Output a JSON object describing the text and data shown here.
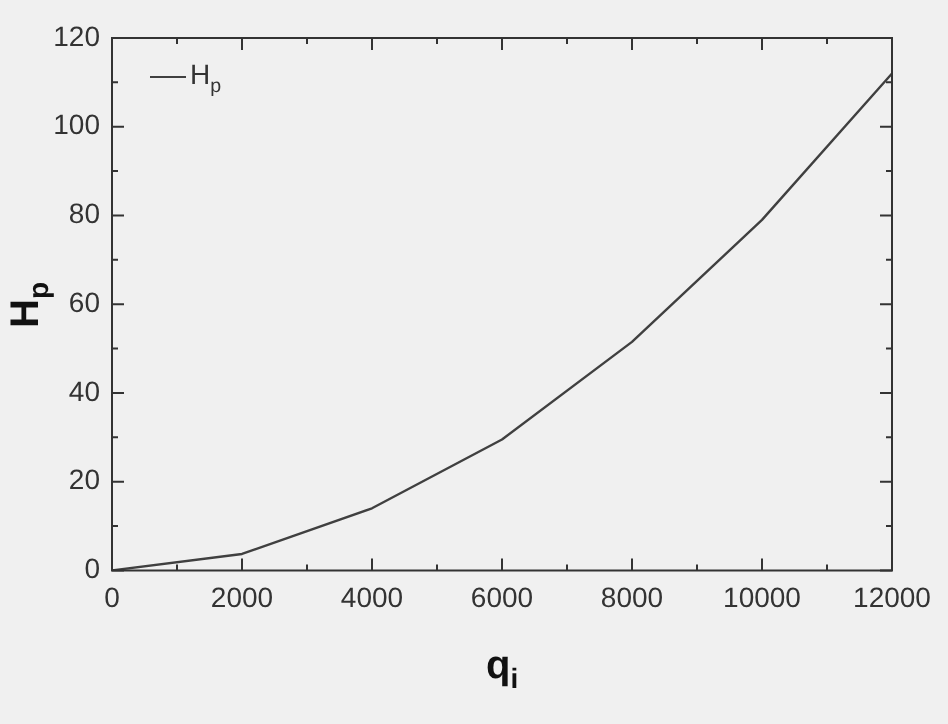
{
  "chart_data": {
    "type": "line",
    "xlabel": "q$_{i}$",
    "ylabel": "H$_{p}$",
    "x": [
      0,
      2000,
      4000,
      6000,
      8000,
      10000,
      12000
    ],
    "series": [
      {
        "name": "H$_{p}$",
        "color": "#404040",
        "values": [
          0,
          3.7,
          14,
          29.5,
          51.5,
          79,
          112
        ]
      }
    ],
    "xlim": [
      0,
      12000
    ],
    "xticks": [
      0,
      {
        "value": 1000,
        "label": null
      },
      2000,
      {
        "value": 3000,
        "label": null
      },
      4000,
      {
        "value": 5000,
        "label": null
      },
      6000,
      {
        "value": 7000,
        "label": null
      },
      8000,
      {
        "value": 9000,
        "label": null
      },
      10000,
      {
        "value": 11000,
        "label": null
      },
      12000
    ],
    "ylim": [
      0,
      120
    ],
    "yticks": [
      0,
      {
        "value": 10,
        "label": null
      },
      20,
      {
        "value": 30,
        "label": null
      },
      40,
      {
        "value": 50,
        "label": null
      },
      60,
      {
        "value": 70,
        "label": null
      },
      80,
      {
        "value": 90,
        "label": null
      },
      100,
      {
        "value": 110,
        "label": null
      },
      120
    ],
    "grid": false,
    "legend": "top left",
    "marker": "none",
    "line_style": "solid"
  }
}
